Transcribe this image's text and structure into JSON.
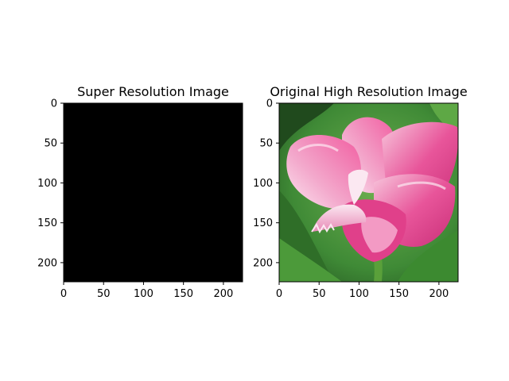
{
  "chart_data": [
    {
      "type": "image",
      "title": "Super Resolution Image",
      "xlim": [
        0,
        224
      ],
      "ylim": [
        224,
        0
      ],
      "xticks": [
        0,
        50,
        100,
        150,
        200
      ],
      "yticks": [
        0,
        50,
        100,
        150,
        200
      ],
      "content": "all black",
      "colors": {
        "fill": "#000000"
      }
    },
    {
      "type": "image",
      "title": "Original High Resolution Image",
      "xlim": [
        0,
        224
      ],
      "ylim": [
        224,
        0
      ],
      "xticks": [
        0,
        50,
        100,
        150,
        200
      ],
      "yticks": [
        0,
        50,
        100,
        150,
        200
      ],
      "content": "pink tulip photograph",
      "colors": {
        "background_green": "#3f8a36",
        "dark_green": "#1f4a1c",
        "petal_pink": "#e0408a",
        "petal_light": "#f6bcd8",
        "petal_white": "#fbe8f1",
        "stem_green": "#5aa03a"
      }
    }
  ]
}
